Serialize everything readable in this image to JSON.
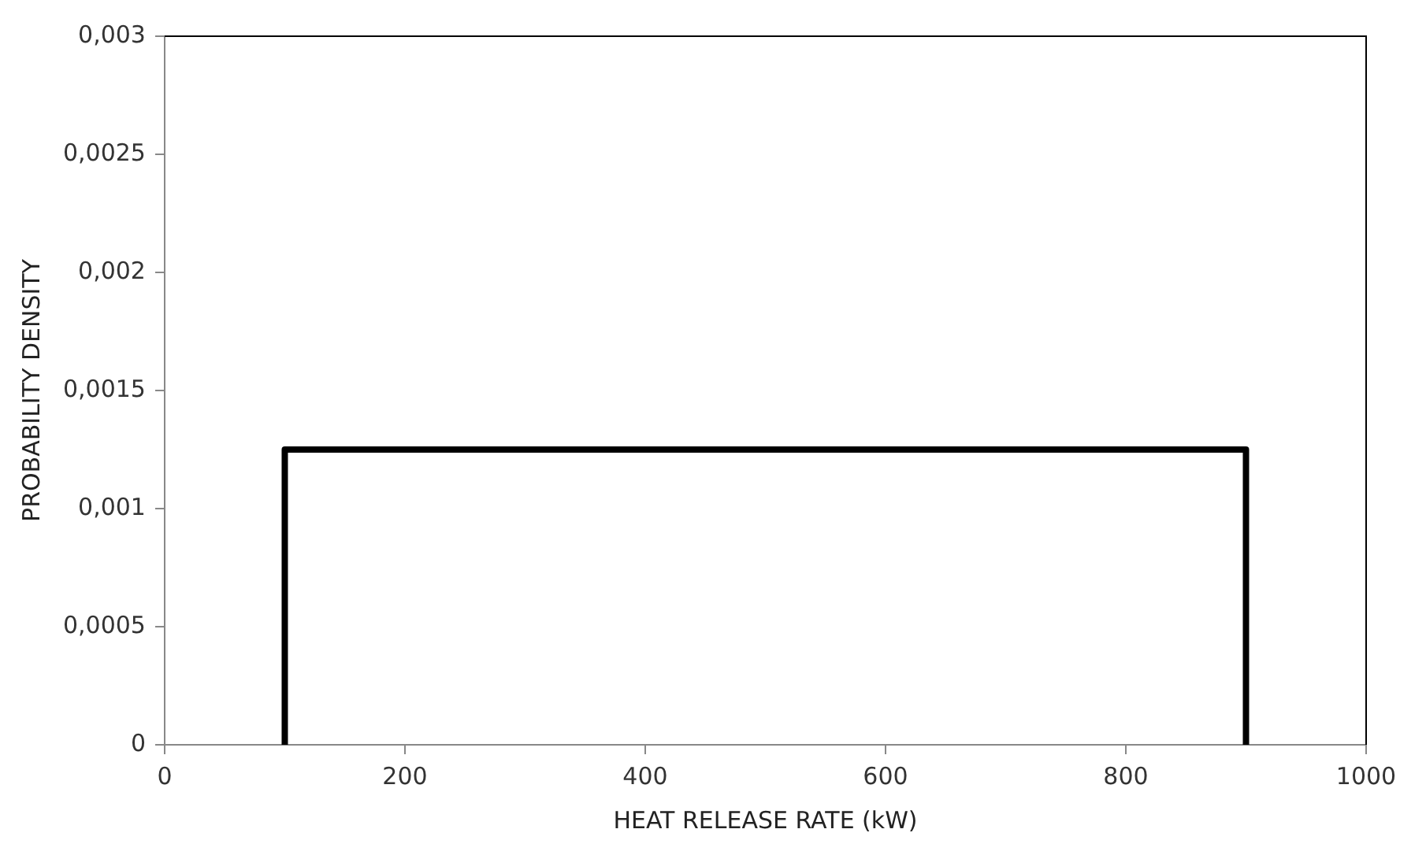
{
  "chart_data": {
    "type": "histogram",
    "xlabel": "HEAT RELEASE RATE (kW)",
    "ylabel": "PROBABILITY DENSITY",
    "bins": [
      100,
      900
    ],
    "values": [
      0.00125
    ],
    "color": "#000000",
    "xlim": [
      0,
      1000
    ],
    "xticks": [
      0,
      200,
      400,
      600,
      800,
      1000
    ],
    "ylim": [
      0,
      0.003
    ],
    "yticks": [
      0,
      {
        "value": 0.0005,
        "label": "0,0005"
      },
      {
        "value": 0.001,
        "label": "0,001"
      },
      {
        "value": 0.0015,
        "label": "0,0015"
      },
      {
        "value": 0.002,
        "label": "0,002"
      },
      {
        "value": 0.0025,
        "label": "0,0025"
      },
      {
        "value": 0.003,
        "label": "0,003"
      }
    ],
    "grid": false,
    "legend": false
  }
}
